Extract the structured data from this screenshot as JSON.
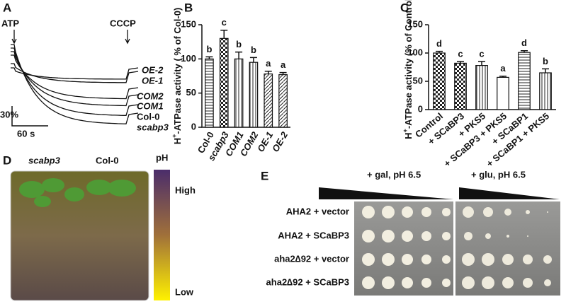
{
  "panel_labels": [
    "A",
    "B",
    "C",
    "D",
    "E"
  ],
  "trace_panel": {
    "atp": "ATP",
    "cccp": "CCCP",
    "traces": [
      "OE-2",
      "OE-1",
      "COM2",
      "COM1",
      "Col-0",
      "scabp3"
    ],
    "scale_y": "30%",
    "scale_x": "60 s"
  },
  "photo_panel": {
    "genotypes": [
      "scabp3",
      "Col-0"
    ],
    "colorbar_title": "pH",
    "colorbar_high": "High",
    "colorbar_low": "Low"
  },
  "yeast_panel": {
    "conditions": [
      "+ gal, pH 6.5",
      "+ glu, pH 6.5"
    ],
    "rows": [
      "AHA2 + vector",
      "AHA2 + SCaBP3",
      "aha2∆92 + vector",
      "aha2∆92 + SCaBP3"
    ]
  },
  "chart_data": [
    {
      "type": "bar",
      "ylabel": [
        "H",
        "+",
        "-ATPase activity ( % of Col-0)"
      ],
      "categories": [
        "Col-0",
        "scabp3",
        "COM1",
        "COM2",
        "OE-1",
        "OE-2"
      ],
      "values": [
        100,
        130,
        100,
        95,
        78,
        77
      ],
      "errors": [
        3,
        12,
        10,
        7,
        4,
        3
      ],
      "letters": [
        "b",
        "c",
        "b",
        "b",
        "a",
        "a"
      ],
      "patterns": [
        "hlines",
        "checker",
        "vlines",
        "vlines",
        "diag",
        "diag"
      ],
      "ylim": [
        0,
        150
      ],
      "yticks": [
        0,
        50,
        100,
        150
      ]
    },
    {
      "type": "bar",
      "ylabel": [
        "H",
        "+",
        "-ATPase activity (% of Control)"
      ],
      "categories": [
        "Control",
        "+ SCaBP3",
        "+ PKS5",
        "+ SCaBP3 + PKS5",
        "+ SCaBP1",
        "+ SCaBP1 + PKS5"
      ],
      "values": [
        100,
        82,
        78,
        57,
        101,
        65
      ],
      "errors": [
        3,
        3,
        7,
        2,
        3,
        7
      ],
      "letters": [
        "d",
        "c",
        "c",
        "a",
        "d",
        "b"
      ],
      "patterns": [
        "checker",
        "checker",
        "vlines",
        "none",
        "hlines",
        "vlines"
      ],
      "ylim": [
        0,
        150
      ],
      "yticks": [
        0,
        50,
        100,
        150
      ]
    }
  ]
}
